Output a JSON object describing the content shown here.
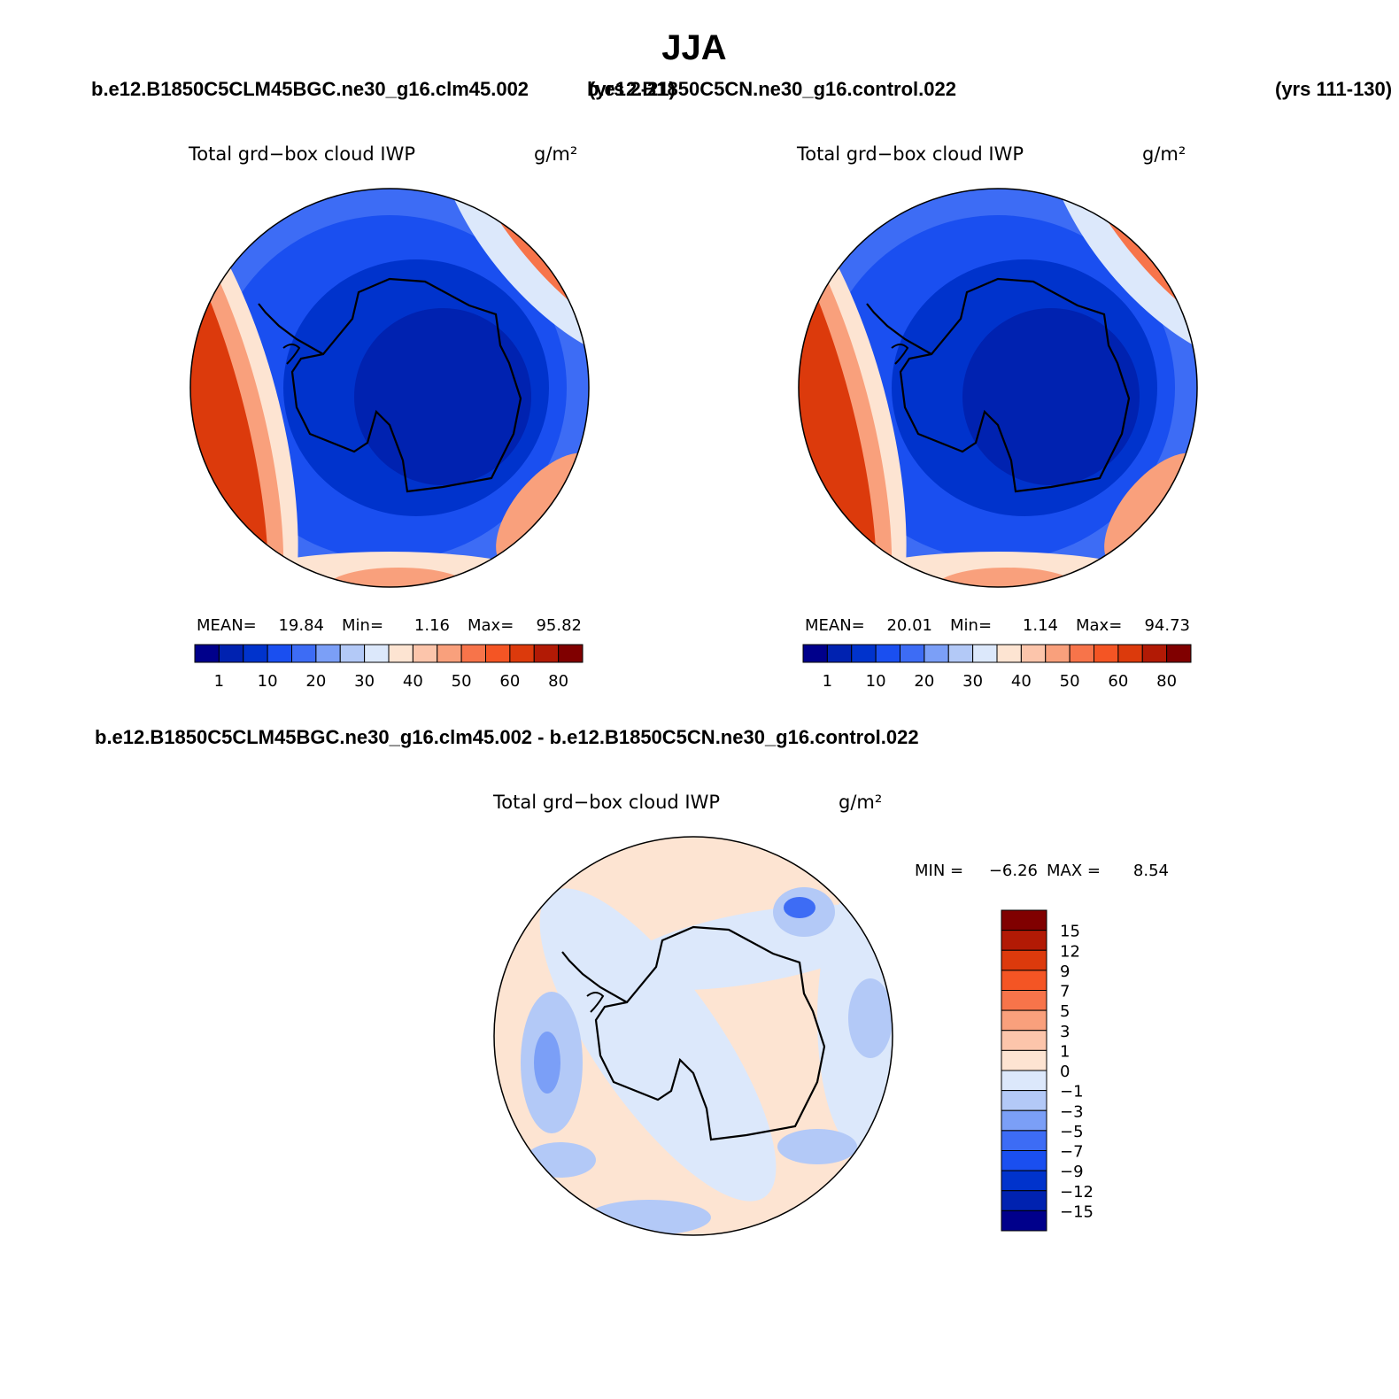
{
  "title": "JJA",
  "header": {
    "case1": "b.e12.B1850C5CLM45BGC.ne30_g16.clm45.002",
    "case1_years": "(yrs 2-21)",
    "case2": "b.e12.B1850C5CN.ne30_g16.control.022",
    "case2_years": "(yrs 111-130)"
  },
  "panels": [
    {
      "variable": "Total grd−box cloud IWP",
      "units": "g/m²",
      "mean_label": "MEAN=",
      "mean": 19.84,
      "min_label": "Min=",
      "min": 1.16,
      "max_label": "Max=",
      "max": 95.82
    },
    {
      "variable": "Total grd−box cloud IWP",
      "units": "g/m²",
      "mean_label": "MEAN=",
      "mean": 20.01,
      "min_label": "Min=",
      "min": 1.14,
      "max_label": "Max=",
      "max": 94.73
    }
  ],
  "colorbar": {
    "colors": [
      "#00008b",
      "#0022b0",
      "#0033cc",
      "#1a4ff0",
      "#3d6cf5",
      "#7b9ff7",
      "#b3c9f7",
      "#dce8fb",
      "#fde4d2",
      "#fcc5ab",
      "#f9a07c",
      "#f7744a",
      "#f45524",
      "#dc3a0c",
      "#b21a05",
      "#800000"
    ],
    "labels": [
      1,
      10,
      20,
      30,
      40,
      50,
      60,
      80
    ]
  },
  "difference": {
    "title": "b.e12.B1850C5CLM45BGC.ne30_g16.clm45.002 - b.e12.B1850C5CN.ne30_g16.control.022",
    "variable": "Total grd−box cloud IWP",
    "units": "g/m²",
    "min_label": "MIN =",
    "min": {
      "value": -6.26,
      "label": "−6.26"
    },
    "max_label": "MAX =",
    "max": 8.54,
    "colorbar": {
      "colors": [
        "#800000",
        "#b21a05",
        "#dc3a0c",
        "#f45524",
        "#f7744a",
        "#f9a07c",
        "#fcc5ab",
        "#fde4d2",
        "#dce8fb",
        "#b3c9f7",
        "#7b9ff7",
        "#3d6cf5",
        "#1a4ff0",
        "#0033cc",
        "#0022b0",
        "#00008b"
      ],
      "labels": [
        15,
        12,
        9,
        7,
        5,
        3,
        1,
        0,
        {
          "value": -1,
          "label": "−1"
        },
        {
          "value": -3,
          "label": "−3"
        },
        {
          "value": -5,
          "label": "−5"
        },
        {
          "value": -7,
          "label": "−7"
        },
        {
          "value": -9,
          "label": "−9"
        },
        {
          "value": -12,
          "label": "−12"
        },
        {
          "value": -15,
          "label": "−15"
        }
      ]
    }
  }
}
